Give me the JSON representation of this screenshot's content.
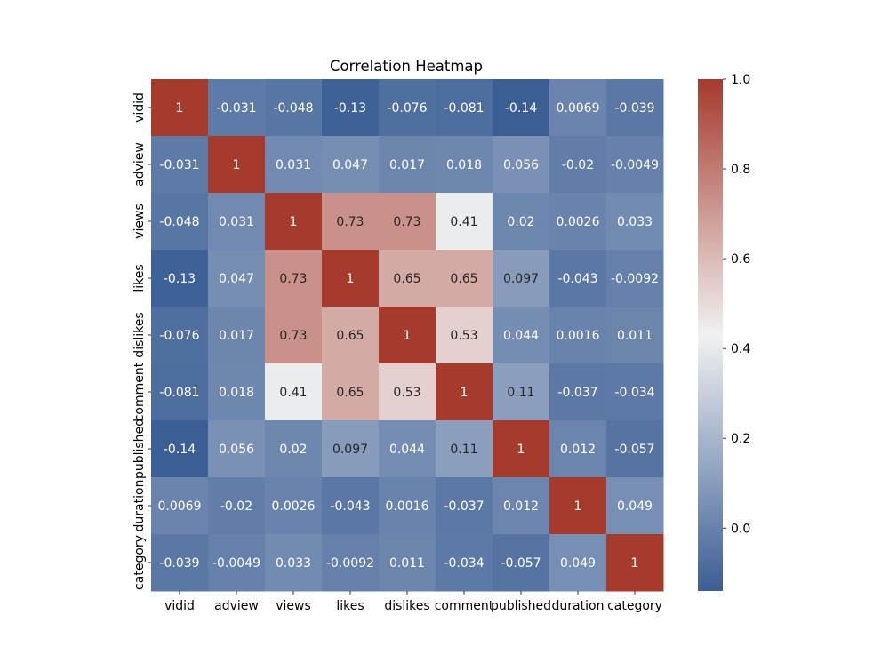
{
  "chart_data": {
    "type": "heatmap",
    "title": "Correlation Heatmap",
    "xlabel": "",
    "ylabel": "",
    "variables": [
      "vidid",
      "adview",
      "views",
      "likes",
      "dislikes",
      "comment",
      "published",
      "duration",
      "category"
    ],
    "matrix": [
      [
        1,
        -0.031,
        -0.048,
        -0.13,
        -0.076,
        -0.081,
        -0.14,
        0.0069,
        -0.039
      ],
      [
        -0.031,
        1,
        0.031,
        0.047,
        0.017,
        0.018,
        0.056,
        -0.02,
        -0.0049
      ],
      [
        -0.048,
        0.031,
        1,
        0.73,
        0.73,
        0.41,
        0.02,
        0.0026,
        0.033
      ],
      [
        -0.13,
        0.047,
        0.73,
        1,
        0.65,
        0.65,
        0.097,
        -0.043,
        -0.0092
      ],
      [
        -0.076,
        0.017,
        0.73,
        0.65,
        1,
        0.53,
        0.044,
        0.0016,
        0.011
      ],
      [
        -0.081,
        0.018,
        0.41,
        0.65,
        0.53,
        1,
        0.11,
        -0.037,
        -0.034
      ],
      [
        -0.14,
        0.056,
        0.02,
        0.097,
        0.044,
        0.11,
        1,
        0.012,
        -0.057
      ],
      [
        0.0069,
        -0.02,
        0.0026,
        -0.043,
        0.0016,
        -0.037,
        0.012,
        1,
        0.049
      ],
      [
        -0.039,
        -0.0049,
        0.033,
        -0.0092,
        0.011,
        -0.034,
        -0.057,
        0.049,
        1
      ]
    ],
    "labels": [
      [
        "1",
        "-0.031",
        "-0.048",
        "-0.13",
        "-0.076",
        "-0.081",
        "-0.14",
        "0.0069",
        "-0.039"
      ],
      [
        "-0.031",
        "1",
        "0.031",
        "0.047",
        "0.017",
        "0.018",
        "0.056",
        "-0.02",
        "-0.0049"
      ],
      [
        "-0.048",
        "0.031",
        "1",
        "0.73",
        "0.73",
        "0.41",
        "0.02",
        "0.0026",
        "0.033"
      ],
      [
        "-0.13",
        "0.047",
        "0.73",
        "1",
        "0.65",
        "0.65",
        "0.097",
        "-0.043",
        "-0.0092"
      ],
      [
        "-0.076",
        "0.017",
        "0.73",
        "0.65",
        "1",
        "0.53",
        "0.044",
        "0.0016",
        "0.011"
      ],
      [
        "-0.081",
        "0.018",
        "0.41",
        "0.65",
        "0.53",
        "1",
        "0.11",
        "-0.037",
        "-0.034"
      ],
      [
        "-0.14",
        "0.056",
        "0.02",
        "0.097",
        "0.044",
        "0.11",
        "1",
        "0.012",
        "-0.057"
      ],
      [
        "0.0069",
        "-0.02",
        "0.0026",
        "-0.043",
        "0.0016",
        "-0.037",
        "0.012",
        "1",
        "0.049"
      ],
      [
        "-0.039",
        "-0.0049",
        "0.033",
        "-0.0092",
        "0.011",
        "-0.034",
        "-0.057",
        "0.049",
        "1"
      ]
    ],
    "colorbar": {
      "vmin": -0.14,
      "vmax": 1.0,
      "ticks": [
        0.0,
        0.2,
        0.4,
        0.6,
        0.8,
        1.0
      ],
      "tick_labels": [
        "0.0",
        "0.2",
        "0.4",
        "0.6",
        "0.8",
        "1.0"
      ],
      "colormap": "diverging blue-white-red",
      "colors": [
        "#3b5e95",
        "#f1f1f1",
        "#a63a2d"
      ]
    },
    "grid": false,
    "legend": "colorbar-right"
  }
}
